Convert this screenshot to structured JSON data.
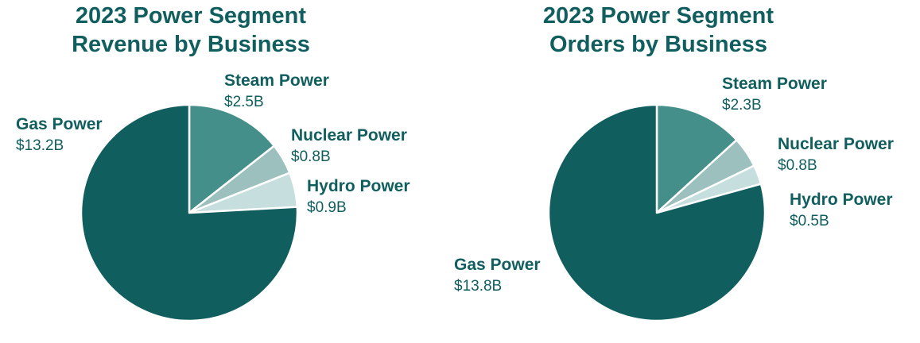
{
  "chart_data": [
    {
      "type": "pie",
      "title": "2023 Power Segment\nRevenue by Business",
      "categories": [
        "Steam Power",
        "Nuclear Power",
        "Hydro Power",
        "Gas Power"
      ],
      "values": [
        2.5,
        0.8,
        0.9,
        13.2
      ],
      "value_labels": [
        "$2.5B",
        "$0.8B",
        "$0.9B",
        "$13.2B"
      ],
      "colors": [
        "#458f8a",
        "#9bc0bd",
        "#c6dedd",
        "#115e5f"
      ]
    },
    {
      "type": "pie",
      "title": "2023 Power Segment\nOrders by Business",
      "categories": [
        "Steam Power",
        "Nuclear Power",
        "Hydro Power",
        "Gas Power"
      ],
      "values": [
        2.3,
        0.8,
        0.5,
        13.8
      ],
      "value_labels": [
        "$2.3B",
        "$0.8B",
        "$0.5B",
        "$13.8B"
      ],
      "colors": [
        "#458f8a",
        "#9bc0bd",
        "#c6dedd",
        "#115e5f"
      ]
    }
  ]
}
